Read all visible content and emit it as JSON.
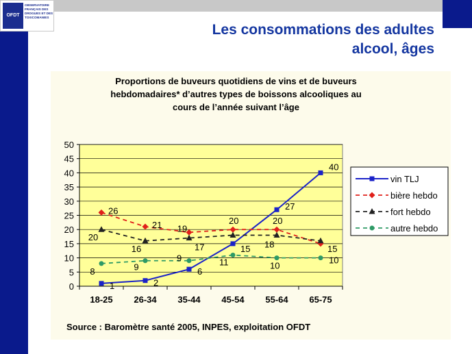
{
  "slide": {
    "title_line1": "Les consommations des adultes",
    "title_line2": "alcool, âges",
    "logo_abbr": "OFDT",
    "logo_text": [
      "OBSERVATOIRE",
      "FRANÇAIS DES",
      "DROGUES ET DES",
      "TOXICOMANIES"
    ]
  },
  "chart_data": {
    "type": "line",
    "title_lines": [
      "Proportions de buveurs quotidiens de vins et de buveurs",
      "hebdomadaires* d’autres types de boissons alcooliques au",
      "cours de l’année suivant l’âge"
    ],
    "categories": [
      "18-25",
      "26-34",
      "35-44",
      "45-54",
      "55-64",
      "65-75"
    ],
    "ylim": [
      0,
      50
    ],
    "yticks": [
      0,
      5,
      10,
      15,
      20,
      25,
      30,
      35,
      40,
      45,
      50
    ],
    "grid": true,
    "legend_position": "right",
    "series": [
      {
        "name": "vin TLJ",
        "values": [
          1,
          2,
          6,
          15,
          27,
          40
        ],
        "labels": [
          "1",
          "2",
          "6",
          "15",
          "27",
          "40"
        ],
        "color": "#1a22c8",
        "dash": "solid",
        "marker": "square"
      },
      {
        "name": "bière hebdo",
        "values": [
          26,
          21,
          19,
          20,
          20,
          15
        ],
        "labels": [
          "26",
          "21",
          "19",
          "20",
          "20",
          "15"
        ],
        "color": "#e0201b",
        "dash": "dashed",
        "marker": "diamond"
      },
      {
        "name": "fort hebdo",
        "values": [
          20,
          16,
          17,
          18,
          18,
          16
        ],
        "labels": [
          "20",
          "16",
          "17",
          "",
          "18",
          ""
        ],
        "color": "#222222",
        "dash": "dashed",
        "marker": "triangle"
      },
      {
        "name": "autre hebdo",
        "values": [
          8,
          9,
          9,
          11,
          10,
          10
        ],
        "labels": [
          "8",
          "9",
          "9",
          "11",
          "10",
          "10"
        ],
        "color": "#2e9a66",
        "dash": "dashed",
        "marker": "circle"
      }
    ],
    "source": "Source : Baromètre santé 2005, INPES, exploitation OFDT"
  }
}
